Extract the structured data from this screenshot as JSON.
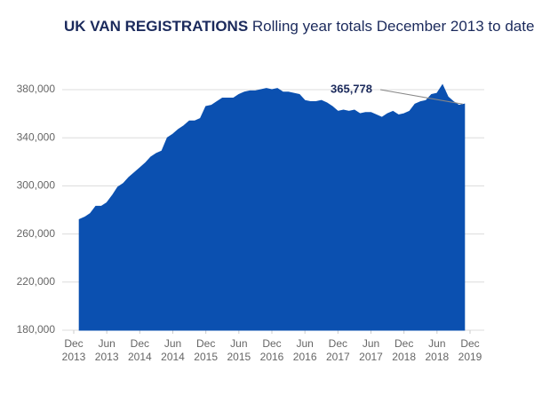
{
  "chart_data": {
    "type": "area",
    "title": "UK VAN REGISTRATIONS",
    "subtitle": "Rolling year totals December 2013 to date",
    "annotation": "365,778",
    "color": "#0b50b0",
    "grid": true,
    "x": [
      1,
      2,
      3,
      4,
      5,
      6,
      7,
      8,
      9,
      10,
      11,
      12,
      13,
      14,
      15,
      16,
      17,
      18,
      19,
      20,
      21,
      22,
      23,
      24,
      25,
      26,
      27,
      28,
      29,
      30,
      31,
      32,
      33,
      34,
      35,
      36,
      37,
      38,
      39,
      40,
      41,
      42,
      43,
      44,
      45,
      46,
      47,
      48,
      49,
      50,
      51,
      52,
      53,
      54,
      55,
      56,
      57,
      58,
      59,
      60,
      61,
      62,
      63,
      64,
      65,
      66,
      67,
      68,
      69,
      70,
      71
    ],
    "values": [
      272000,
      274000,
      277000,
      283000,
      283000,
      286000,
      292000,
      299000,
      302000,
      307000,
      311000,
      315000,
      319000,
      324000,
      327000,
      329000,
      340000,
      343000,
      347000,
      350000,
      354000,
      354000,
      356000,
      366000,
      367000,
      370000,
      373000,
      373000,
      373000,
      376000,
      378000,
      379000,
      379000,
      380000,
      381000,
      380000,
      381000,
      378000,
      378000,
      377000,
      376000,
      371000,
      370000,
      370000,
      371000,
      369000,
      366000,
      362000,
      363000,
      362000,
      363000,
      360000,
      361000,
      361000,
      359000,
      357000,
      360000,
      362000,
      359000,
      360000,
      362000,
      368000,
      370000,
      371000,
      376000,
      377000,
      384000,
      374000,
      370000,
      367000,
      368000
    ],
    "xlim": [
      0,
      72
    ],
    "xticks": [
      {
        "value": 0,
        "label": "Dec 2013"
      },
      {
        "value": 6,
        "label": "Jun 2013"
      },
      {
        "value": 12,
        "label": "Dec 2014"
      },
      {
        "value": 18,
        "label": "Jun 2014"
      },
      {
        "value": 24,
        "label": "Dec 2015"
      },
      {
        "value": 30,
        "label": "Jun 2015"
      },
      {
        "value": 36,
        "label": "Dec 2016"
      },
      {
        "value": 42,
        "label": "Jun 2016"
      },
      {
        "value": 48,
        "label": "Dec 2017"
      },
      {
        "value": 54,
        "label": "Jun 2017"
      },
      {
        "value": 60,
        "label": "Dec 2018"
      },
      {
        "value": 66,
        "label": "Jun 2018"
      },
      {
        "value": 72,
        "label": "Dec 2019"
      }
    ],
    "ylim": [
      180000,
      380000
    ],
    "yticks": [
      {
        "value": 180000,
        "label": "180,000"
      },
      {
        "value": 220000,
        "label": "220,000"
      },
      {
        "value": 260000,
        "label": "260,000"
      },
      {
        "value": 300000,
        "label": "300,000"
      },
      {
        "value": 340000,
        "label": "340,000"
      },
      {
        "value": 380000,
        "label": "380,000"
      }
    ]
  }
}
